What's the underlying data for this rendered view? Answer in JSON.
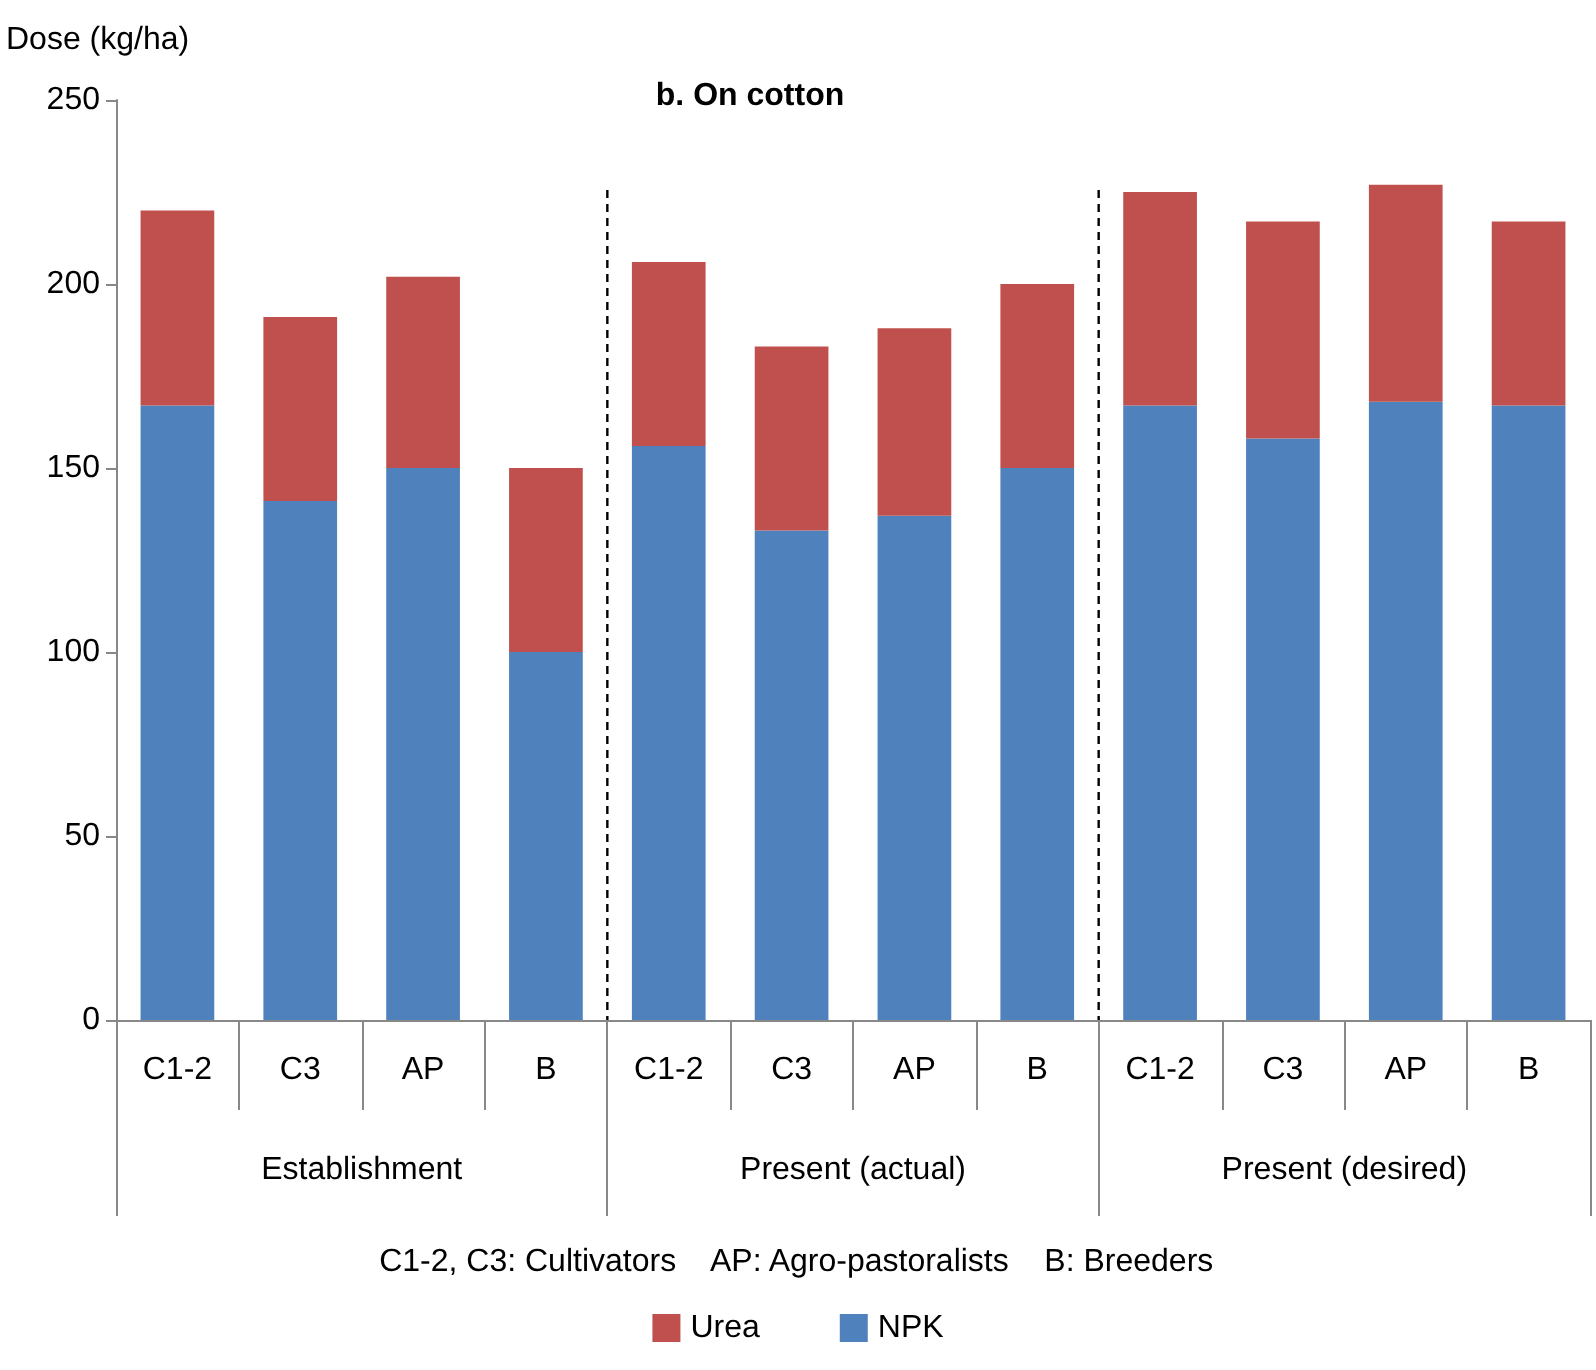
{
  "chart_data": {
    "type": "bar",
    "title": "b. On cotton",
    "ylabel": "Dose (kg/ha)",
    "categories": [
      "C1-2",
      "C3",
      "AP",
      "B",
      "C1-2",
      "C3",
      "AP",
      "B",
      "C1-2",
      "C3",
      "AP",
      "B"
    ],
    "series": [
      {
        "name": "NPK",
        "color": "#4f81bd",
        "values": [
          167,
          141,
          150,
          100,
          156,
          133,
          137,
          150,
          167,
          158,
          168,
          167
        ]
      },
      {
        "name": "Urea",
        "color": "#c0504d",
        "values": [
          53,
          50,
          52,
          50,
          50,
          50,
          51,
          50,
          58,
          59,
          59,
          50
        ]
      }
    ],
    "stacked": true,
    "ylim": [
      0,
      250
    ],
    "yticks": [
      0,
      50,
      100,
      150,
      200,
      250
    ],
    "grid": false,
    "legend": "bottom",
    "annotations": [
      "Establishment",
      "Present (actual)",
      "Present (desired)",
      "C1-2, C3: Cultivators    AP: Agro-pastoralists    B: Breeders"
    ]
  }
}
